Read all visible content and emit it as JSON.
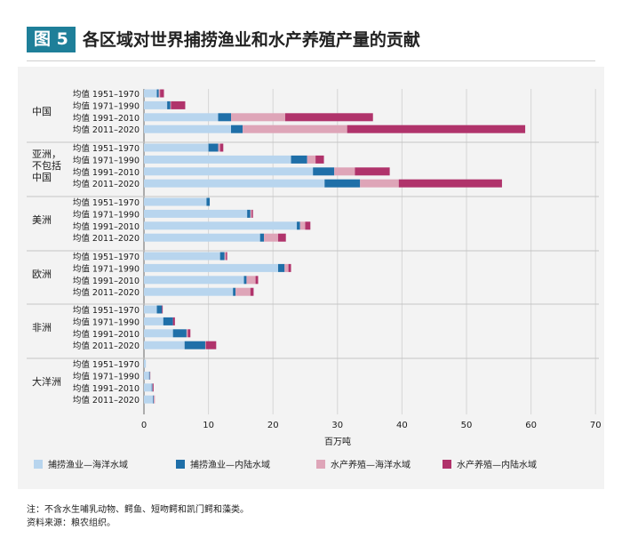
{
  "figure": {
    "badge": "图 5",
    "title": "各区域对世界捕捞渔业和水产养殖产量的贡献"
  },
  "notes": {
    "line1": "注：不含水生哺乳动物、鳄鱼、短吻鳄和凯门鳄和藻类。",
    "line2": "资料来源：粮农组织。"
  },
  "colors": {
    "capture_marine": "#b8d5ee",
    "capture_inland": "#1f6fa8",
    "aqua_marine": "#dea5b8",
    "aqua_inland": "#b0336b",
    "badge": "#1e7f99",
    "panel": "#f3f3f3"
  },
  "chart_data": {
    "type": "bar",
    "orientation": "horizontal",
    "stacked": true,
    "xlabel": "百万吨",
    "xlim": [
      0,
      70
    ],
    "xticks": [
      0,
      10,
      20,
      30,
      40,
      50,
      60,
      70
    ],
    "grid": "vertical",
    "legend_position": "bottom",
    "series": [
      {
        "name": "捕捞渔业—海洋水域",
        "color": "#b8d5ee"
      },
      {
        "name": "捕捞渔业—内陆水域",
        "color": "#1f6fa8"
      },
      {
        "name": "水产养殖—海洋水域",
        "color": "#dea5b8"
      },
      {
        "name": "水产养殖—内陆水域",
        "color": "#b0336b"
      }
    ],
    "periods": [
      "均值 1951–1970",
      "均值 1971–1990",
      "均值 1991–2010",
      "均值 2011–2020"
    ],
    "groups": [
      {
        "label_lines": [
          "中国"
        ],
        "rows": [
          [
            2.0,
            0.3,
            0.2,
            0.6
          ],
          [
            3.6,
            0.5,
            0.1,
            2.2
          ],
          [
            11.5,
            2.0,
            8.4,
            13.6
          ],
          [
            13.5,
            1.8,
            16.2,
            27.6
          ]
        ]
      },
      {
        "label_lines": [
          "亚洲，",
          "不包括",
          "中国"
        ],
        "rows": [
          [
            10.0,
            1.5,
            0.3,
            0.5
          ],
          [
            22.8,
            2.5,
            1.3,
            1.3
          ],
          [
            26.2,
            3.3,
            3.2,
            5.4
          ],
          [
            28.0,
            5.5,
            6.0,
            16.0
          ]
        ]
      },
      {
        "label_lines": [
          "美洲"
        ],
        "rows": [
          [
            9.7,
            0.5,
            0,
            0
          ],
          [
            16.0,
            0.5,
            0.2,
            0.2
          ],
          [
            23.7,
            0.5,
            0.8,
            0.8
          ],
          [
            18.0,
            0.6,
            2.2,
            1.2
          ]
        ]
      },
      {
        "label_lines": [
          "欧洲"
        ],
        "rows": [
          [
            11.8,
            0.7,
            0.2,
            0.2
          ],
          [
            20.8,
            1.0,
            0.6,
            0.4
          ],
          [
            15.5,
            0.4,
            1.4,
            0.4
          ],
          [
            13.8,
            0.4,
            2.3,
            0.5
          ]
        ]
      },
      {
        "label_lines": [
          "非洲"
        ],
        "rows": [
          [
            2.0,
            0.8,
            0,
            0.1
          ],
          [
            3.0,
            1.5,
            0,
            0.3
          ],
          [
            4.5,
            2.1,
            0.2,
            0.4
          ],
          [
            6.3,
            3.2,
            0.1,
            1.6
          ]
        ]
      },
      {
        "label_lines": [
          "大洋洲"
        ],
        "rows": [
          [
            0.3,
            0,
            0,
            0
          ],
          [
            0.8,
            0.1,
            0.1,
            0
          ],
          [
            1.2,
            0.1,
            0.1,
            0.1
          ],
          [
            1.4,
            0.1,
            0.2,
            0
          ]
        ]
      }
    ]
  }
}
